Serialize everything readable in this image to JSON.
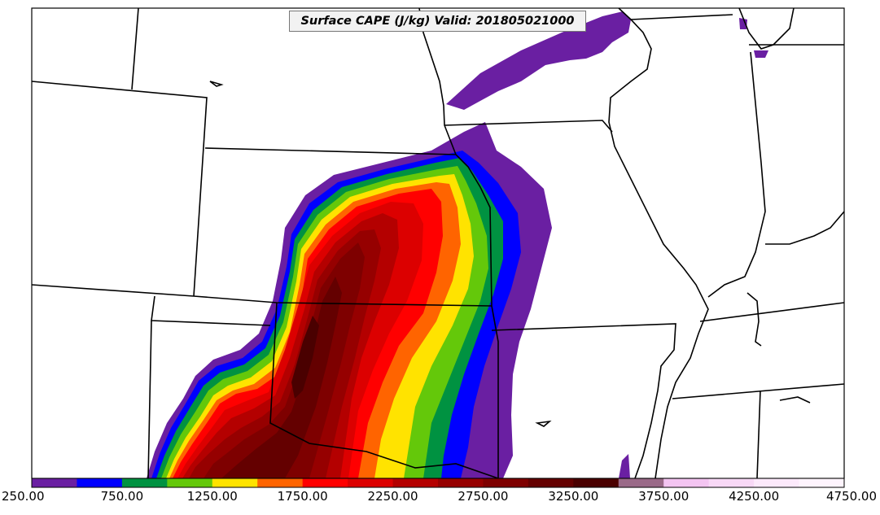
{
  "title": "Surface CAPE (J/kg) Valid: 201805021000",
  "colorbar": {
    "bins": [
      {
        "from": 250,
        "to": 500,
        "color": "#6a1fa2"
      },
      {
        "from": 500,
        "to": 750,
        "color": "#0000ff"
      },
      {
        "from": 750,
        "to": 1000,
        "color": "#009241"
      },
      {
        "from": 1000,
        "to": 1250,
        "color": "#64c80a"
      },
      {
        "from": 1250,
        "to": 1500,
        "color": "#ffe300"
      },
      {
        "from": 1500,
        "to": 1750,
        "color": "#ff6400"
      },
      {
        "from": 1750,
        "to": 2000,
        "color": "#ff0000"
      },
      {
        "from": 2000,
        "to": 2250,
        "color": "#dc0000"
      },
      {
        "from": 2250,
        "to": 2500,
        "color": "#b40000"
      },
      {
        "from": 2500,
        "to": 2750,
        "color": "#960000"
      },
      {
        "from": 2750,
        "to": 3000,
        "color": "#7e0000"
      },
      {
        "from": 3000,
        "to": 3250,
        "color": "#640000"
      },
      {
        "from": 3250,
        "to": 3500,
        "color": "#4a0000"
      },
      {
        "from": 3500,
        "to": 3750,
        "color": "#9a6a88"
      },
      {
        "from": 3750,
        "to": 4000,
        "color": "#f3c4f1"
      },
      {
        "from": 4000,
        "to": 4250,
        "color": "#f8d8f6"
      },
      {
        "from": 4250,
        "to": 4500,
        "color": "#fce9fb"
      },
      {
        "from": 4500,
        "to": 4750,
        "color": "#fef4fd"
      }
    ],
    "tick_labels": [
      "250.00",
      "750.00",
      "1250.00",
      "1750.00",
      "2250.00",
      "2750.00",
      "3250.00",
      "3750.00",
      "4250.00",
      "4750.00"
    ]
  }
}
